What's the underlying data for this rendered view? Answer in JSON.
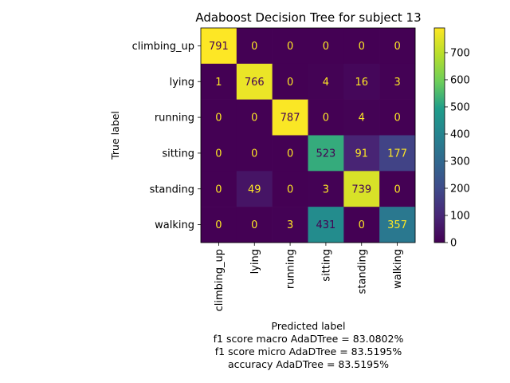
{
  "chart_data": {
    "type": "heatmap",
    "title": "Adaboost Decision Tree for subject 13",
    "xlabel": "Predicted label",
    "ylabel": "True label",
    "x_categories": [
      "climbing_up",
      "lying",
      "running",
      "sitting",
      "standing",
      "walking"
    ],
    "y_categories": [
      "climbing_up",
      "lying",
      "running",
      "sitting",
      "standing",
      "walking"
    ],
    "matrix": [
      [
        791,
        0,
        0,
        0,
        0,
        0
      ],
      [
        1,
        766,
        0,
        4,
        16,
        3
      ],
      [
        0,
        0,
        787,
        0,
        4,
        0
      ],
      [
        0,
        0,
        0,
        523,
        91,
        177
      ],
      [
        0,
        49,
        0,
        3,
        739,
        0
      ],
      [
        0,
        0,
        3,
        431,
        0,
        357
      ]
    ],
    "colorbar": {
      "min": 0,
      "max": 791,
      "ticks": [
        0,
        100,
        200,
        300,
        400,
        500,
        600,
        700
      ],
      "colormap": "viridis"
    },
    "footer_lines": [
      "f1 score macro AdaDTree = 83.0802%",
      "f1 score micro AdaDTree = 83.5195%",
      "accuracy AdaDTree = 83.5195%"
    ],
    "colors": {
      "low_text": "#fde725",
      "high_text": "#440154"
    }
  }
}
